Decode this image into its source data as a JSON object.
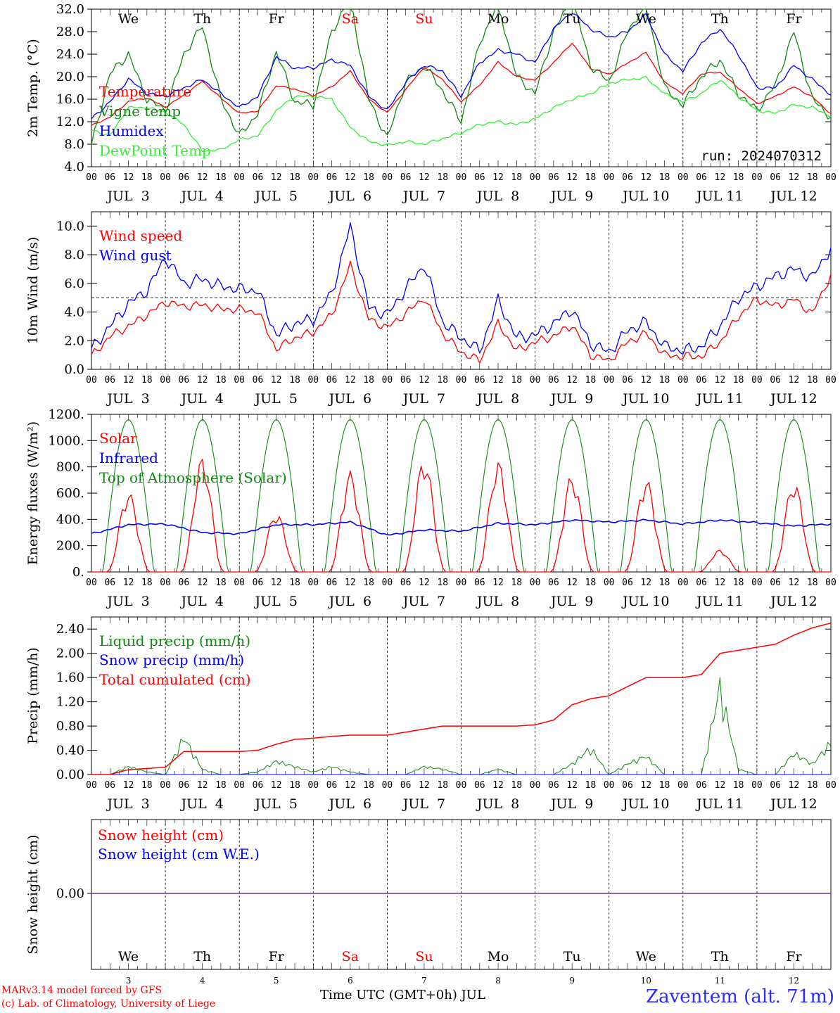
{
  "chart_data": [
    {
      "type": "line",
      "ylabel": "2m Temp. (°C)",
      "ylim": [
        4,
        32
      ],
      "yticks": [
        "32.0",
        "28.0",
        "24.0",
        "20.0",
        "16.0",
        "12.0",
        "8.0",
        "4.0"
      ],
      "run_label": "run: 2024070312",
      "x_hours": [
        0,
        6,
        12,
        18,
        24,
        30,
        36,
        42,
        48,
        54,
        60,
        66,
        72,
        78,
        84,
        90,
        96,
        102,
        108,
        114,
        120,
        126,
        132,
        138,
        144,
        150,
        156,
        162,
        168,
        174,
        180,
        186,
        192,
        198,
        204,
        210,
        216,
        222,
        228,
        234,
        240
      ],
      "series": [
        {
          "name": "Temperature",
          "color": "#ff0000",
          "values": [
            11.3,
            12.8,
            15.6,
            16.2,
            14.6,
            16.7,
            19.2,
            16.2,
            13.5,
            13.9,
            18.4,
            17.8,
            16.6,
            18.2,
            21.0,
            16.0,
            13.6,
            17.7,
            21.7,
            19.5,
            15.5,
            18.5,
            22.6,
            20.0,
            19.4,
            22.5,
            26.0,
            21.5,
            20.4,
            22.4,
            24.3,
            19.0,
            17.0,
            20.5,
            20.8,
            18.0,
            15.2,
            16.5,
            18.2,
            16.4,
            13.4
          ]
        },
        {
          "name": "Vigne temp",
          "color": "#118811",
          "values": [
            7.8,
            20.5,
            24.0,
            16.0,
            14.0,
            24.0,
            29.0,
            16.0,
            9.5,
            13.5,
            24.5,
            15.5,
            15.0,
            28.0,
            34.0,
            16.0,
            9.0,
            19.0,
            22.0,
            17.5,
            12.0,
            26.0,
            33.0,
            20.0,
            17.0,
            28.0,
            34.0,
            22.0,
            19.0,
            28.0,
            33.0,
            18.0,
            15.0,
            20.0,
            23.0,
            17.0,
            14.0,
            18.5,
            28.0,
            16.0,
            12.8
          ]
        },
        {
          "name": "Humidex",
          "color": "#0000ff",
          "values": [
            12.5,
            15.5,
            19.6,
            17.0,
            16.5,
            18.0,
            19.5,
            17.0,
            14.5,
            16.5,
            23.5,
            21.5,
            21.6,
            23.0,
            22.0,
            16.5,
            14.0,
            19.0,
            22.0,
            21.0,
            16.5,
            22.5,
            24.7,
            24.0,
            22.5,
            28.5,
            31.5,
            28.5,
            27.0,
            28.0,
            31.0,
            24.0,
            21.0,
            26.0,
            28.5,
            24.0,
            18.0,
            18.0,
            22.0,
            19.5,
            16.8
          ]
        },
        {
          "name": "DewPoint Temp",
          "color": "#33ee33",
          "values": [
            10.5,
            9.5,
            14.5,
            14.5,
            13.7,
            11.5,
            6.8,
            7.0,
            8.8,
            9.5,
            14.0,
            16.5,
            16.5,
            16.0,
            11.0,
            8.5,
            7.8,
            8.5,
            8.0,
            9.0,
            10.0,
            11.5,
            12.0,
            11.5,
            12.5,
            14.5,
            16.0,
            17.0,
            18.8,
            19.5,
            19.8,
            17.0,
            15.5,
            17.0,
            19.5,
            16.5,
            14.0,
            13.5,
            15.0,
            14.5,
            13.0
          ]
        }
      ]
    },
    {
      "type": "line",
      "ylabel": "10m Wind (m/s)",
      "ylim": [
        0,
        11
      ],
      "yticks": [
        "10.0",
        "8.0",
        "6.0",
        "4.0",
        "2.0",
        "0.0"
      ],
      "reference_line": 5,
      "x_hours": [
        0,
        6,
        12,
        18,
        24,
        30,
        36,
        42,
        48,
        54,
        60,
        66,
        72,
        78,
        84,
        90,
        96,
        102,
        108,
        114,
        120,
        126,
        132,
        138,
        144,
        150,
        156,
        162,
        168,
        174,
        180,
        186,
        192,
        198,
        204,
        210,
        216,
        222,
        228,
        234,
        240
      ],
      "series": [
        {
          "name": "Wind speed",
          "color": "#ff0000",
          "values": [
            0.9,
            2.3,
            3.0,
            3.8,
            4.7,
            4.4,
            4.5,
            4.2,
            4.2,
            4.0,
            1.4,
            2.2,
            2.6,
            3.8,
            7.3,
            3.5,
            2.9,
            3.9,
            5.0,
            2.5,
            1.2,
            0.6,
            3.2,
            1.3,
            1.9,
            2.3,
            3.1,
            1.0,
            0.6,
            1.9,
            2.5,
            1.0,
            0.9,
            0.9,
            1.9,
            3.7,
            4.9,
            4.4,
            4.9,
            3.9,
            6.6
          ]
        },
        {
          "name": "Wind gust",
          "color": "#0000ff",
          "values": [
            1.4,
            3.0,
            4.6,
            5.5,
            7.8,
            6.0,
            6.3,
            5.8,
            5.6,
            5.5,
            2.4,
            3.2,
            3.5,
            5.3,
            10.0,
            4.3,
            3.8,
            5.6,
            7.3,
            3.3,
            2.2,
            1.3,
            4.8,
            2.2,
            2.4,
            3.2,
            4.2,
            1.8,
            1.2,
            2.7,
            3.3,
            1.6,
            1.3,
            1.6,
            3.0,
            5.0,
            5.8,
            6.5,
            7.0,
            6.4,
            8.5
          ]
        }
      ]
    },
    {
      "type": "line",
      "ylabel": "Energy fluxes (W/m²)",
      "ylim": [
        0,
        1200
      ],
      "yticks": [
        "1200.",
        "1000.",
        "800.",
        "600.",
        "400.",
        "200.",
        "0."
      ],
      "series": [
        {
          "name": "Solar",
          "color": "#ff0000",
          "daily_peak": [
            620,
            880,
            460,
            770,
            880,
            850,
            750,
            720,
            170,
            700
          ]
        },
        {
          "name": "Infrared",
          "color": "#0000ff",
          "x_hours": [
            0,
            12,
            24,
            36,
            48,
            60,
            72,
            84,
            96,
            108,
            120,
            132,
            144,
            156,
            168,
            180,
            192,
            204,
            216,
            228,
            240
          ],
          "values": [
            290,
            360,
            365,
            300,
            290,
            360,
            360,
            380,
            280,
            320,
            310,
            370,
            360,
            395,
            380,
            395,
            365,
            395,
            375,
            350,
            365
          ]
        },
        {
          "name": "Top of Atmosphere (Solar)",
          "color": "#118811",
          "daily_peak": [
            1160,
            1160,
            1160,
            1160,
            1160,
            1160,
            1160,
            1160,
            1160,
            1160
          ]
        }
      ]
    },
    {
      "type": "line",
      "ylabel": "Precip (mm/h)",
      "ylim": [
        0,
        2.6
      ],
      "yticks": [
        "2.40",
        "2.00",
        "1.60",
        "1.20",
        "0.80",
        "0.40",
        "0.00"
      ],
      "x_hours": [
        0,
        6,
        12,
        18,
        24,
        30,
        36,
        42,
        48,
        54,
        60,
        66,
        72,
        78,
        84,
        90,
        96,
        102,
        108,
        114,
        120,
        126,
        132,
        138,
        144,
        150,
        156,
        162,
        168,
        174,
        180,
        186,
        192,
        198,
        204,
        210,
        216,
        222,
        228,
        234,
        240
      ],
      "series": [
        {
          "name": "Liquid precip (mm/h)",
          "color": "#118811",
          "values": [
            0,
            0,
            0.15,
            0.05,
            0,
            0.7,
            0.1,
            0,
            0,
            0.05,
            0.25,
            0.15,
            0.05,
            0.15,
            0.05,
            0,
            0,
            0,
            0.15,
            0.1,
            0,
            0,
            0.1,
            0,
            0,
            0,
            0.2,
            0.5,
            0,
            0.2,
            0.35,
            0,
            0,
            0,
            1.65,
            0.1,
            0,
            0,
            0.4,
            0.2,
            0.6
          ]
        },
        {
          "name": "Snow precip (mm/h)",
          "color": "#0000ff",
          "values": [
            0,
            0,
            0,
            0,
            0,
            0,
            0,
            0,
            0,
            0,
            0,
            0,
            0,
            0,
            0,
            0,
            0,
            0,
            0,
            0,
            0,
            0,
            0,
            0,
            0,
            0,
            0,
            0,
            0,
            0,
            0,
            0,
            0,
            0,
            0,
            0,
            0,
            0,
            0,
            0,
            0
          ]
        },
        {
          "name": "Total cumulated (cm)",
          "color": "#ff0000",
          "values": [
            0,
            0,
            0.08,
            0.1,
            0.12,
            0.38,
            0.38,
            0.38,
            0.38,
            0.4,
            0.5,
            0.58,
            0.6,
            0.63,
            0.65,
            0.65,
            0.65,
            0.7,
            0.75,
            0.8,
            0.8,
            0.8,
            0.8,
            0.8,
            0.82,
            0.9,
            1.15,
            1.25,
            1.3,
            1.45,
            1.6,
            1.6,
            1.6,
            1.65,
            2.0,
            2.05,
            2.1,
            2.15,
            2.3,
            2.42,
            2.5
          ]
        }
      ]
    },
    {
      "type": "line",
      "ylabel": "Snow height (cm)",
      "yticks": [
        "0.00"
      ],
      "series": [
        {
          "name": "Snow height (cm)",
          "color": "#ff0000",
          "values": [
            0,
            0
          ]
        },
        {
          "name": "Snow height (cm W.E.)",
          "color": "#0000ff",
          "values": [
            0,
            0
          ]
        }
      ]
    }
  ],
  "x_axis": {
    "hour_ticks": [
      "00",
      "06",
      "12",
      "18"
    ],
    "end_tick": "00",
    "date_labels": [
      "JUL  3",
      "JUL  4",
      "JUL  5",
      "JUL  6",
      "JUL  7",
      "JUL  8",
      "JUL  9",
      "JUL 10",
      "JUL 11",
      "JUL 12"
    ],
    "weekdays": [
      "We",
      "Th",
      "Fr",
      "Sa",
      "Su",
      "Mo",
      "Tu",
      "We",
      "Th",
      "Fr"
    ],
    "weekend_color": "#ff0000",
    "weekend_indices": [
      3,
      4
    ],
    "day_numbers": [
      "3",
      "4",
      "5",
      "6",
      "7",
      "8",
      "9",
      "10",
      "11",
      "12"
    ]
  },
  "footer": {
    "model": "MARv3.14 model forced by GFS",
    "credit": "(c) Lab. of Climatology, University of Liege",
    "x_title": "Time UTC (GMT+0h) JUL",
    "station": "Zaventem (alt. 71m)"
  }
}
